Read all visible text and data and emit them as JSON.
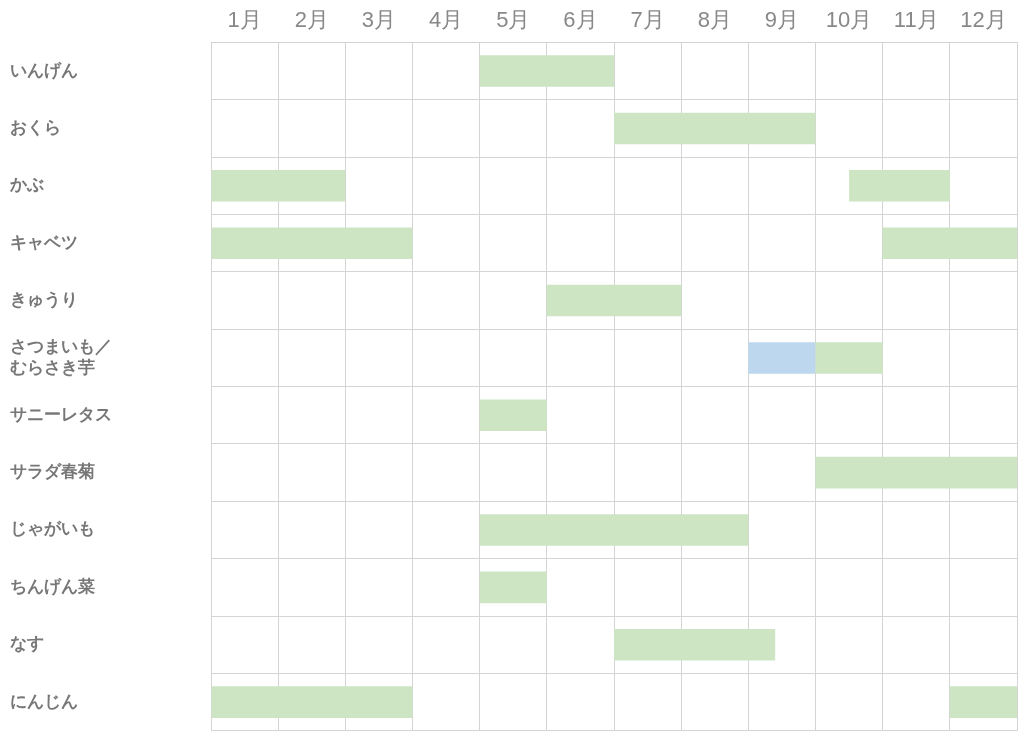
{
  "chart_data": {
    "type": "bar",
    "orientation": "horizontal",
    "grid": true,
    "legend": false,
    "categories": [
      "いんげん",
      "おくら",
      "かぶ",
      "キャベツ",
      "きゅうり",
      "さつまいも／むらさき芋",
      "サニーレタス",
      "サラダ春菊",
      "じゃがいも",
      "ちんげん菜",
      "なす",
      "にんじん"
    ],
    "xlim": [
      0,
      12
    ],
    "xticks": [
      {
        "value": 0,
        "label": null
      },
      {
        "value": 0.5,
        "label": "1月"
      },
      {
        "value": 1,
        "label": null
      },
      {
        "value": 1.5,
        "label": "2月"
      },
      {
        "value": 2,
        "label": null
      },
      {
        "value": 2.5,
        "label": "3月"
      },
      {
        "value": 3,
        "label": null
      },
      {
        "value": 3.5,
        "label": "4月"
      },
      {
        "value": 4,
        "label": null
      },
      {
        "value": 4.5,
        "label": "5月"
      },
      {
        "value": 5,
        "label": null
      },
      {
        "value": 5.5,
        "label": "6月"
      },
      {
        "value": 6,
        "label": null
      },
      {
        "value": 6.5,
        "label": "7月"
      },
      {
        "value": 7,
        "label": null
      },
      {
        "value": 7.5,
        "label": "8月"
      },
      {
        "value": 8,
        "label": null
      },
      {
        "value": 8.5,
        "label": "9月"
      },
      {
        "value": 9,
        "label": null
      },
      {
        "value": 9.5,
        "label": "10月"
      },
      {
        "value": 10,
        "label": null
      },
      {
        "value": 10.5,
        "label": "11月"
      },
      {
        "value": 11,
        "label": null
      },
      {
        "value": 11.5,
        "label": "12月"
      },
      {
        "value": 12,
        "label": null
      }
    ],
    "series": [
      {
        "color": "#cde5c3",
        "base": [
          4,
          6,
          0,
          0,
          5,
          9,
          4,
          9,
          4,
          4,
          6,
          0
        ],
        "values": [
          2,
          3,
          2,
          3,
          2,
          1,
          1,
          3,
          4,
          1,
          2.4,
          3
        ]
      },
      {
        "color": "#cde5c3",
        "base": [
          null,
          null,
          9.5,
          10,
          null,
          null,
          null,
          null,
          null,
          null,
          null,
          11
        ],
        "values": [
          null,
          null,
          1.5,
          2,
          null,
          null,
          null,
          null,
          null,
          null,
          null,
          1
        ]
      },
      {
        "color": "#bdd7ee",
        "base": [
          null,
          null,
          null,
          null,
          null,
          8,
          null,
          null,
          null,
          null,
          null,
          null
        ],
        "values": [
          null,
          null,
          null,
          null,
          null,
          1,
          null,
          null,
          null,
          null,
          null,
          null
        ]
      }
    ]
  }
}
